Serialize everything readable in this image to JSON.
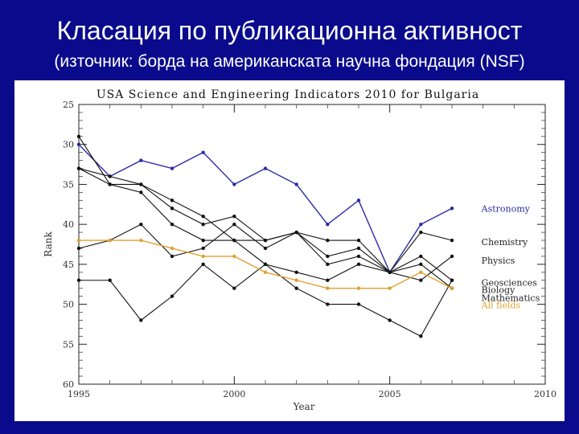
{
  "slide": {
    "title": "Класация по публикационна активност",
    "subtitle": "(източник: борда на американската научна фондация (NSF)"
  },
  "colors": {
    "background": "#0a0a8c",
    "blue_series": "#2a2aa8",
    "orange_series": "#e0a030",
    "black_series": "#111111"
  },
  "chart_data": {
    "type": "line",
    "title": "USA Science and Engineering Indicators 2010 for Bulgaria",
    "xlabel": "Year",
    "ylabel": "Rank",
    "xlim": [
      1995,
      2010
    ],
    "ylim": [
      60,
      25
    ],
    "y_inverted": true,
    "grid": false,
    "legend": "right",
    "xticks": [
      1995,
      2000,
      2005,
      2010
    ],
    "yticks": [
      25,
      30,
      35,
      40,
      45,
      50,
      55,
      60
    ],
    "x": [
      1995,
      1996,
      1997,
      1998,
      1999,
      2000,
      2001,
      2002,
      2003,
      2004,
      2005,
      2006,
      2007
    ],
    "series": [
      {
        "name": "Astronomy",
        "color": "#2a2aa8",
        "values": [
          30,
          34,
          32,
          33,
          31,
          35,
          33,
          35,
          40,
          37,
          46,
          40,
          38
        ]
      },
      {
        "name": "Chemistry",
        "color": "#111111",
        "values": [
          29,
          35,
          35,
          38,
          40,
          39,
          42,
          41,
          42,
          42,
          46,
          41,
          42
        ]
      },
      {
        "name": "Physics",
        "color": "#111111",
        "values": [
          33,
          34,
          35,
          37,
          39,
          42,
          42,
          41,
          44,
          43,
          46,
          44,
          47
        ]
      },
      {
        "name": "Geosciences",
        "color": "#111111",
        "values": [
          43,
          42,
          40,
          44,
          43,
          40,
          43,
          41,
          45,
          44,
          46,
          47,
          44
        ]
      },
      {
        "name": "Biology",
        "color": "#111111",
        "values": [
          33,
          35,
          36,
          40,
          42,
          42,
          45,
          46,
          47,
          45,
          46,
          45,
          48
        ]
      },
      {
        "name": "Mathematics",
        "color": "#111111",
        "values": [
          47,
          47,
          52,
          49,
          45,
          48,
          45,
          48,
          50,
          50,
          52,
          54,
          47
        ]
      },
      {
        "name": "All fields",
        "color": "#e0a030",
        "values": [
          42,
          42,
          42,
          43,
          44,
          44,
          46,
          47,
          48,
          48,
          48,
          46,
          48
        ]
      }
    ]
  }
}
